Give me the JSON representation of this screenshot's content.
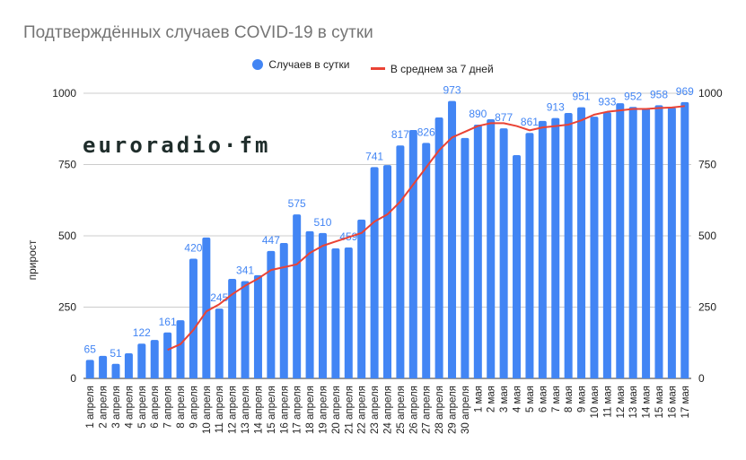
{
  "chart_data": {
    "type": "bar",
    "title": "Подтверждённых случаев COVID-19 в сутки",
    "ylabel": "прирост",
    "xlabel": "",
    "ylim": [
      0,
      1000
    ],
    "yticks": [
      "0",
      "250",
      "500",
      "750",
      "1000"
    ],
    "grid": true,
    "legend_position": "top",
    "watermark": "euroradio·fm",
    "colors": {
      "bars": "#4285f4",
      "line": "#ea4335",
      "labels": "#4285f4"
    },
    "categories": [
      "1 апреля",
      "2 апреля",
      "3 апреля",
      "4 апреля",
      "5 апреля",
      "6 апреля",
      "7 апреля",
      "8 апреля",
      "9 апреля",
      "10 апреля",
      "11 апреля",
      "12 апреля",
      "13 апреля",
      "14 апреля",
      "15 апреля",
      "16 апреля",
      "17 апреля",
      "18 апреля",
      "19 апреля",
      "20 апреля",
      "21 апреля",
      "22 апреля",
      "23 апреля",
      "24 апреля",
      "25 апреля",
      "26 апреля",
      "27 апреля",
      "28 апреля",
      "29 апреля",
      "30 апреля",
      "1 мая",
      "2 мая",
      "3 мая",
      "4 мая",
      "5 мая",
      "6 мая",
      "7 мая",
      "8 мая",
      "9 мая",
      "10 мая",
      "11 мая",
      "12 мая",
      "13 мая",
      "14 мая",
      "15 мая",
      "16 мая",
      "17 мая"
    ],
    "series": [
      {
        "name": "Случаев в сутки",
        "type": "bar",
        "values": [
          65,
          79,
          51,
          88,
          122,
          135,
          161,
          204,
          420,
          494,
          245,
          349,
          341,
          362,
          447,
          475,
          575,
          516,
          510,
          456,
          459,
          557,
          741,
          748,
          817,
          871,
          826,
          915,
          973,
          843,
          890,
          909,
          877,
          783,
          861,
          903,
          913,
          931,
          951,
          918,
          933,
          965,
          952,
          947,
          958,
          950,
          969
        ],
        "labeled": [
          65,
          null,
          51,
          null,
          122,
          null,
          161,
          null,
          420,
          null,
          245,
          null,
          341,
          null,
          447,
          null,
          575,
          null,
          510,
          null,
          459,
          null,
          741,
          null,
          817,
          null,
          826,
          null,
          973,
          null,
          890,
          null,
          877,
          null,
          861,
          null,
          913,
          null,
          951,
          null,
          933,
          null,
          952,
          null,
          958,
          null,
          969
        ]
      },
      {
        "name": "В среднем за 7 дней",
        "type": "line",
        "values": [
          null,
          null,
          null,
          null,
          null,
          null,
          100,
          120,
          170,
          235,
          260,
          295,
          325,
          350,
          380,
          390,
          400,
          440,
          465,
          480,
          495,
          510,
          550,
          575,
          620,
          680,
          740,
          800,
          845,
          865,
          885,
          895,
          895,
          885,
          870,
          880,
          885,
          890,
          905,
          925,
          935,
          940,
          945,
          945,
          948,
          950,
          955
        ]
      }
    ]
  }
}
